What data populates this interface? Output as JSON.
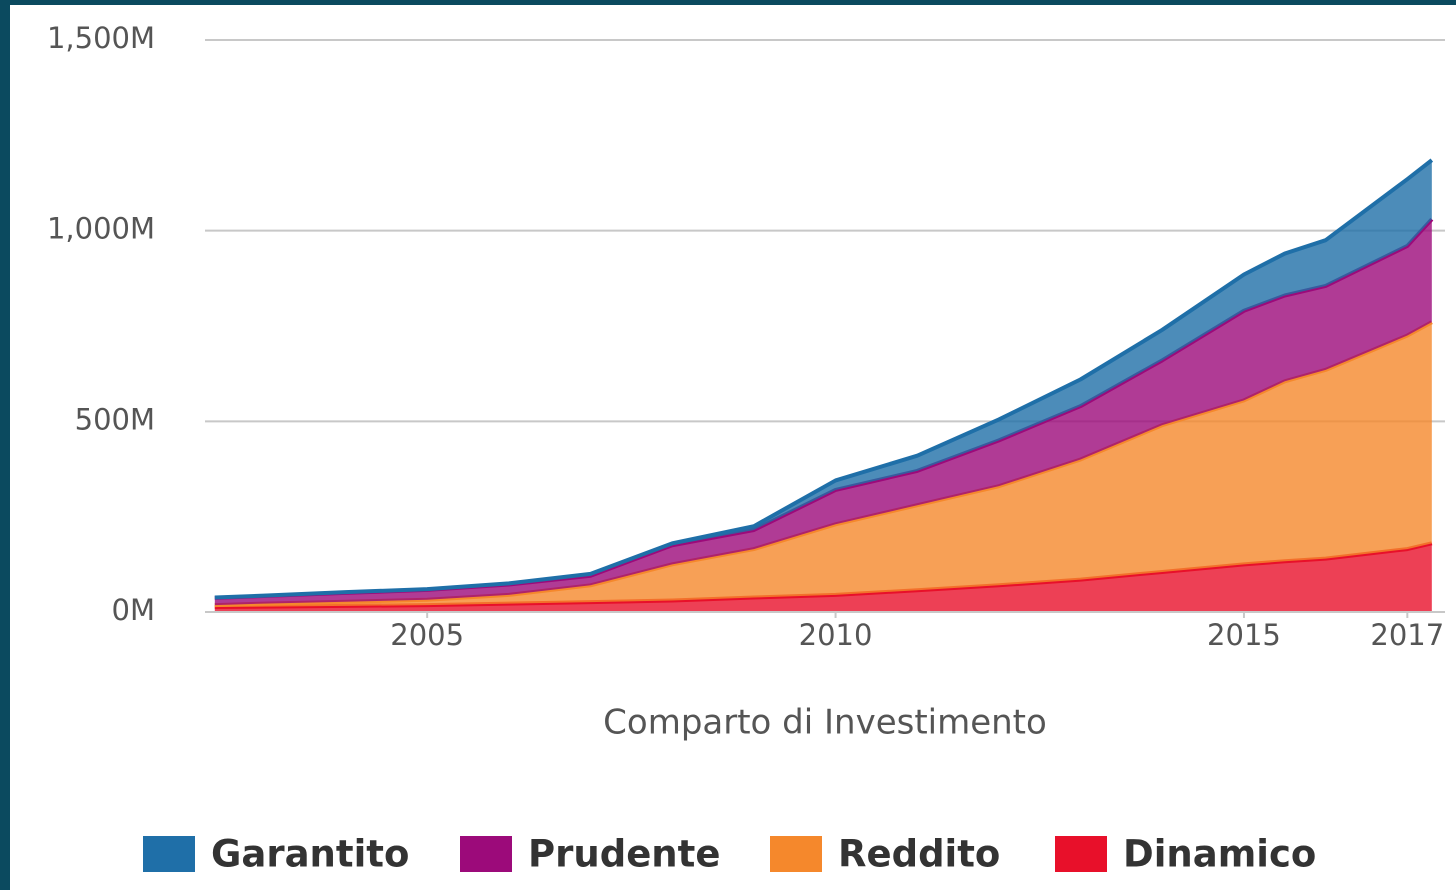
{
  "chart_data": {
    "type": "stacked_area",
    "x_label": "Comparto di Investimento",
    "x": [
      2002.4,
      2003,
      2004,
      2005,
      2006,
      2007,
      2008,
      2009,
      2010,
      2011,
      2012,
      2013,
      2014,
      2015,
      2015.5,
      2016,
      2017,
      2017.3
    ],
    "series": [
      {
        "name": "Garantito",
        "color": "#1f6fa8",
        "values": [
          1,
          1,
          2,
          2,
          3,
          5,
          5,
          10,
          25,
          40,
          55,
          70,
          80,
          95,
          110,
          120,
          175,
          155
        ]
      },
      {
        "name": "Prudente",
        "color": "#9c0a7a",
        "values": [
          19,
          20,
          23,
          26,
          27,
          25,
          50,
          50,
          90,
          90,
          120,
          140,
          170,
          235,
          225,
          220,
          235,
          270
        ]
      },
      {
        "name": "Reddito",
        "color": "#f5882c",
        "values": [
          5,
          8,
          11,
          14,
          23,
          44,
          95,
          127,
          185,
          223,
          260,
          315,
          385,
          430,
          472,
          495,
          560,
          580
        ]
      },
      {
        "name": "Dinamico",
        "color": "#e8102a",
        "values": [
          13,
          14,
          16,
          18,
          22,
          26,
          30,
          38,
          45,
          57,
          70,
          85,
          105,
          125,
          133,
          140,
          165,
          180
        ]
      }
    ],
    "xlim": [
      2002.28,
      2017.4
    ],
    "xticks": [
      2005,
      2010,
      2015,
      2017
    ],
    "ylim": [
      0,
      1500
    ],
    "yticks": [
      {
        "value": 0,
        "label": "0M"
      },
      {
        "value": 500,
        "label": "500M"
      },
      {
        "value": 1000,
        "label": "1,000M"
      },
      {
        "value": 1500,
        "label": "1,500M"
      }
    ],
    "grid": true,
    "legend": "bottom"
  }
}
